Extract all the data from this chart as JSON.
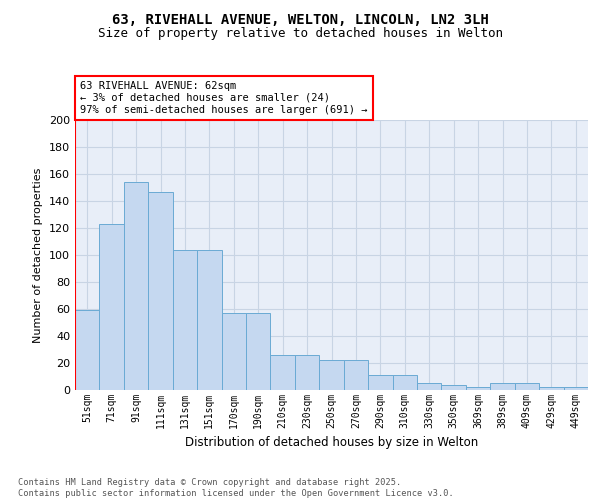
{
  "title_line1": "63, RIVEHALL AVENUE, WELTON, LINCOLN, LN2 3LH",
  "title_line2": "Size of property relative to detached houses in Welton",
  "xlabel": "Distribution of detached houses by size in Welton",
  "ylabel": "Number of detached properties",
  "categories": [
    "51sqm",
    "71sqm",
    "91sqm",
    "111sqm",
    "131sqm",
    "151sqm",
    "170sqm",
    "190sqm",
    "210sqm",
    "230sqm",
    "250sqm",
    "270sqm",
    "290sqm",
    "310sqm",
    "330sqm",
    "350sqm",
    "369sqm",
    "389sqm",
    "409sqm",
    "429sqm",
    "449sqm"
  ],
  "values": [
    59,
    123,
    154,
    147,
    104,
    104,
    57,
    57,
    26,
    26,
    22,
    22,
    11,
    11,
    5,
    4,
    2,
    5,
    5,
    2,
    2
  ],
  "bar_color": "#c5d8f0",
  "bar_edge_color": "#6aaad4",
  "grid_color": "#c8d4e4",
  "background_color": "#e8eef8",
  "annotation_text": "63 RIVEHALL AVENUE: 62sqm\n← 3% of detached houses are smaller (24)\n97% of semi-detached houses are larger (691) →",
  "footer_text": "Contains HM Land Registry data © Crown copyright and database right 2025.\nContains public sector information licensed under the Open Government Licence v3.0.",
  "ylim": [
    0,
    200
  ],
  "yticks": [
    0,
    20,
    40,
    60,
    80,
    100,
    120,
    140,
    160,
    180,
    200
  ]
}
